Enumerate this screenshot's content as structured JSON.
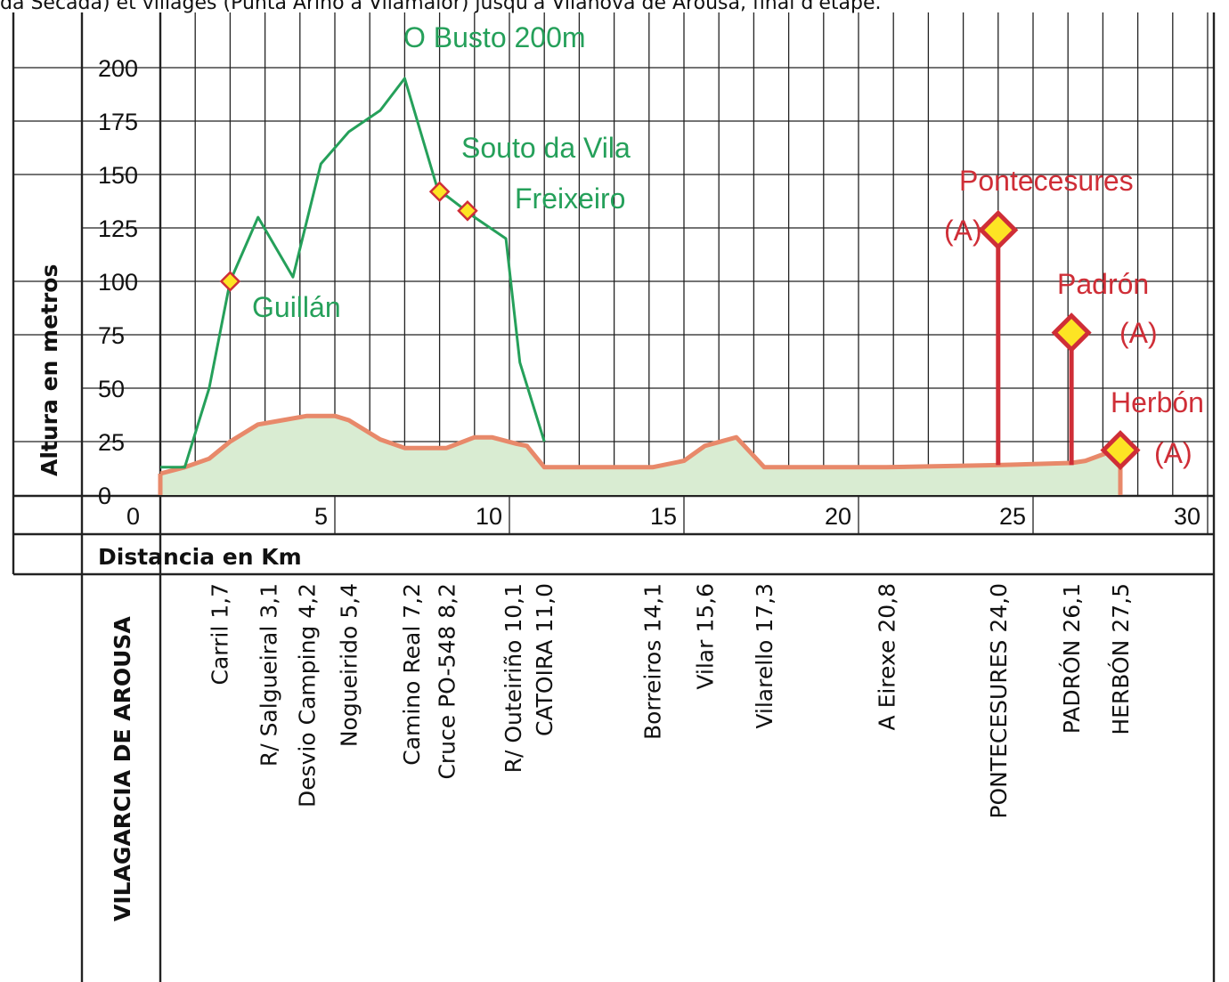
{
  "caption": "da Secada) et villages (Punta Arino à Vilamaior) jusqu'à Vilanova de Arousa, final d'étape.",
  "chart_data": {
    "type": "line",
    "ylabel": "Altura en metros",
    "xlabel": "Distancia en Km",
    "xlim": [
      0,
      30
    ],
    "ylim": [
      0,
      210
    ],
    "yticks": [
      0,
      25,
      50,
      75,
      100,
      125,
      150,
      175,
      200
    ],
    "xticks": [
      0,
      5,
      10,
      15,
      20,
      25,
      30
    ],
    "colors": {
      "green": "#25a05a",
      "red": "#cf2e37",
      "profile_line": "#e8896a",
      "profile_fill": "#d9ecd2",
      "marker_fill": "#fde424",
      "grid": "#222222"
    },
    "series": [
      {
        "key": "main-route",
        "x": [
          0,
          0.7,
          1.4,
          2.0,
          2.8,
          3.5,
          4.2,
          5.0,
          5.4,
          6.3,
          7.0,
          7.5,
          8.2,
          9.0,
          9.5,
          10.2,
          10.5,
          11.0,
          13.5,
          14.1,
          15.0,
          15.6,
          16.5,
          17.3,
          18.0,
          20.8,
          24.0,
          26.1,
          26.5,
          27.5
        ],
        "y": [
          10,
          13,
          17,
          25,
          33,
          35,
          37,
          37,
          35,
          26,
          22,
          22,
          22,
          27,
          27,
          24,
          23,
          13,
          13,
          13,
          16,
          23,
          27,
          13,
          13,
          13,
          14,
          15,
          16,
          22
        ]
      },
      {
        "key": "alternate-route",
        "x": [
          0,
          0.7,
          1.4,
          2.0,
          2.8,
          3.8,
          4.6,
          5.4,
          6.3,
          7.0,
          8.0,
          8.2,
          9.0,
          9.9,
          10.3,
          11.0
        ],
        "y": [
          13,
          13,
          50,
          100,
          130,
          102,
          155,
          170,
          180,
          195,
          140,
          140,
          130,
          120,
          62,
          25
        ]
      }
    ],
    "waypoints_green": [
      {
        "x": 2.0,
        "y": 100
      },
      {
        "x": 8.0,
        "y": 142
      },
      {
        "x": 8.8,
        "y": 133
      }
    ],
    "waypoints_red": [
      {
        "x": 24.0,
        "y": 124
      },
      {
        "x": 26.1,
        "y": 76
      },
      {
        "x": 27.5,
        "y": 21
      }
    ],
    "annotations_green": [
      "O Busto 200m",
      "Souto da Vila",
      "Freixeiro",
      "Guillán"
    ],
    "annotations_red": [
      "Pontecesures",
      "(A)",
      "Padrón",
      "(A)",
      "Herbón",
      "(A)"
    ],
    "route_start": "VILAGARCIA DE AROUSA",
    "places": [
      {
        "name": "Carril",
        "km": "1,7"
      },
      {
        "name": "R/ Salgueiral",
        "km": "3,1"
      },
      {
        "name": "Desvio Camping",
        "km": "4,2"
      },
      {
        "name": "Nogueirido",
        "km": "5,4"
      },
      {
        "name": "Camino Real",
        "km": "7,2"
      },
      {
        "name": "Cruce PO-548",
        "km": "8,2"
      },
      {
        "name": "R/ Outeiriño",
        "km": "10,1"
      },
      {
        "name": "CATOIRA",
        "km": "11,0"
      },
      {
        "name": "Borreiros",
        "km": "14,1"
      },
      {
        "name": "Vilar",
        "km": "15,6"
      },
      {
        "name": "Vilarello",
        "km": "17,3"
      },
      {
        "name": "A Eirexe",
        "km": "20,8"
      },
      {
        "name": "PONTECESURES",
        "km": "24,0"
      },
      {
        "name": "PADRÓN",
        "km": "26,1"
      },
      {
        "name": "HERBÓN",
        "km": "27,5"
      }
    ]
  }
}
